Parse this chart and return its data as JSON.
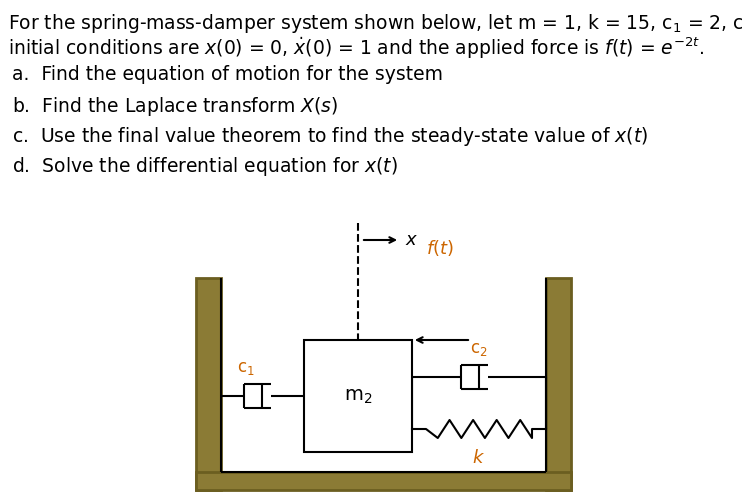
{
  "bg_color": "#ffffff",
  "wall_color": "#8B7B35",
  "wall_edge": "#6B5E20",
  "black": "#000000",
  "orange": "#cc6600",
  "fig_w": 7.42,
  "fig_h": 4.99,
  "dpi": 100,
  "text_fs": 13.5,
  "q_fs": 13.5,
  "diag_fs": 13
}
